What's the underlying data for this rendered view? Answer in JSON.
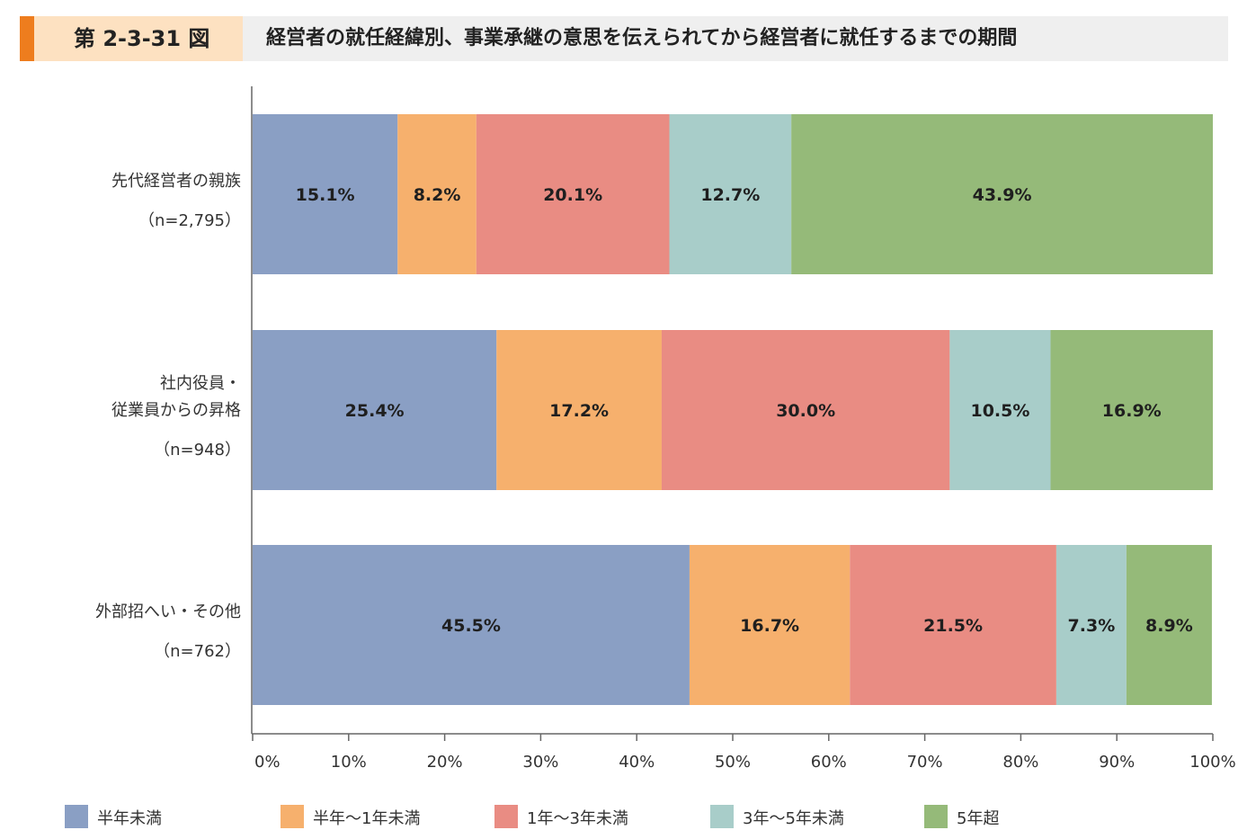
{
  "header": {
    "figure_number": "第 2-3-31 図",
    "title": "経営者の就任経緯別、事業承継の意思を伝えられてから経営者に就任するまでの期間"
  },
  "colors": {
    "accent": "#ee7d1e",
    "series": [
      "#8a9fc4",
      "#f6b06d",
      "#e98c83",
      "#a8cdc9",
      "#95ba79"
    ]
  },
  "chart_data": {
    "type": "bar",
    "orientation": "horizontal",
    "stacked": true,
    "categories": [
      {
        "lines": [
          "先代経営者の親族"
        ],
        "n": "（n=2,795）"
      },
      {
        "lines": [
          "社内役員・",
          "従業員からの昇格"
        ],
        "n": "（n=948）"
      },
      {
        "lines": [
          "外部招へい・その他"
        ],
        "n": "（n=762）"
      }
    ],
    "series": [
      {
        "name": "半年未満",
        "values": [
          15.1,
          25.4,
          45.5
        ],
        "labels": [
          "15.1%",
          "25.4%",
          "45.5%"
        ]
      },
      {
        "name": "半年～1年未満",
        "values": [
          8.2,
          17.2,
          16.7
        ],
        "labels": [
          "8.2%",
          "17.2%",
          "16.7%"
        ]
      },
      {
        "name": "1年～3年未満",
        "values": [
          20.1,
          30.0,
          21.5
        ],
        "labels": [
          "20.1%",
          "30.0%",
          "21.5%"
        ]
      },
      {
        "name": "3年～5年未満",
        "values": [
          12.7,
          10.5,
          7.3
        ],
        "labels": [
          "12.7%",
          "10.5%",
          "7.3%"
        ]
      },
      {
        "name": "5年超",
        "values": [
          43.9,
          16.9,
          8.9
        ],
        "labels": [
          "43.9%",
          "16.9%",
          "8.9%"
        ]
      }
    ],
    "xlim": [
      0,
      100
    ],
    "xticks": [
      "0%",
      "10%",
      "20%",
      "30%",
      "40%",
      "50%",
      "60%",
      "70%",
      "80%",
      "90%",
      "100%"
    ],
    "legend_position": "bottom",
    "grid": false
  }
}
